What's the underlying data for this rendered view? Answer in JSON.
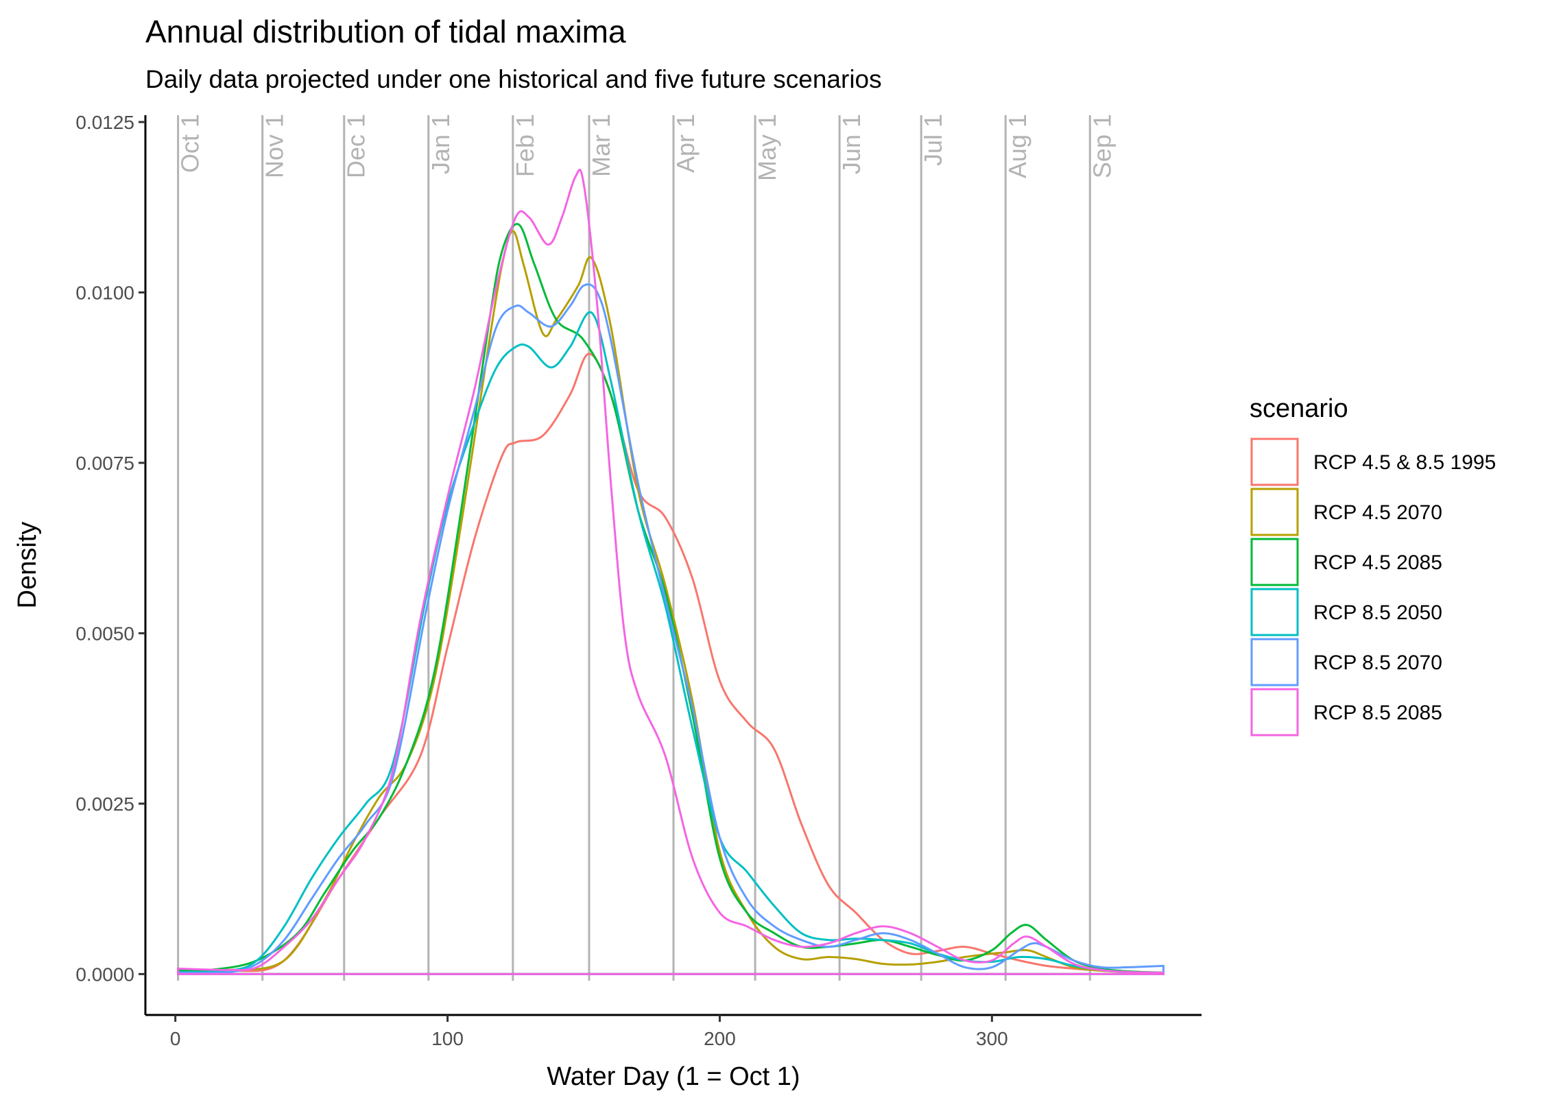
{
  "chart_data": {
    "type": "line",
    "title": "Annual distribution of tidal maxima",
    "subtitle": "Daily data projected under one historical and five future scenarios",
    "xlabel": "Water Day (1 = Oct 1)",
    "ylabel": "Density",
    "xlim": [
      -11,
      377
    ],
    "ylim": [
      -0.0006,
      0.0126
    ],
    "x_ticks": [
      0,
      100,
      200,
      300
    ],
    "x_tick_labels": [
      "0",
      "100",
      "200",
      "300"
    ],
    "y_ticks": [
      0,
      0.0025,
      0.005,
      0.0075,
      0.01,
      0.0125
    ],
    "y_tick_labels": [
      "0.0000",
      "0.0025",
      "0.0050",
      "0.0075",
      "0.0100",
      "0.0125"
    ],
    "grid": false,
    "legend": {
      "title": "scenario",
      "position": "right"
    },
    "month_lines": [
      {
        "label": "Oct 1",
        "x": 1
      },
      {
        "label": "Nov 1",
        "x": 32
      },
      {
        "label": "Dec 1",
        "x": 62
      },
      {
        "label": "Jan 1",
        "x": 93
      },
      {
        "label": "Feb 1",
        "x": 124
      },
      {
        "label": "Mar 1",
        "x": 152
      },
      {
        "label": "Apr 1",
        "x": 183
      },
      {
        "label": "May 1",
        "x": 213
      },
      {
        "label": "Jun 1",
        "x": 244
      },
      {
        "label": "Jul 1",
        "x": 274
      },
      {
        "label": "Aug 1",
        "x": 305
      },
      {
        "label": "Sep 1",
        "x": 336
      }
    ],
    "series": [
      {
        "name": "RCP 4.5 & 8.5 1995",
        "color": "#F8766D",
        "x": [
          1,
          20,
          40,
          60,
          75,
          90,
          100,
          110,
          120,
          125,
          135,
          145,
          152,
          160,
          170,
          180,
          190,
          200,
          210,
          220,
          230,
          240,
          250,
          260,
          270,
          280,
          290,
          300,
          310,
          320,
          330,
          340,
          350,
          363
        ],
        "y": [
          2e-05,
          4e-05,
          0.0002,
          0.0014,
          0.0023,
          0.0032,
          0.0048,
          0.0064,
          0.0076,
          0.0078,
          0.0079,
          0.0085,
          0.0091,
          0.0085,
          0.0071,
          0.0067,
          0.0058,
          0.0043,
          0.0037,
          0.0033,
          0.0022,
          0.0013,
          0.0009,
          0.0005,
          0.0003,
          0.00034,
          0.0004,
          0.0003,
          0.0002,
          0.00012,
          8e-05,
          5e-05,
          3e-05,
          1e-05
        ]
      },
      {
        "name": "RCP 4.5 2070",
        "color": "#B79F00",
        "x": [
          1,
          20,
          40,
          55,
          65,
          75,
          85,
          95,
          105,
          115,
          120,
          124,
          128,
          135,
          140,
          148,
          153,
          160,
          170,
          180,
          190,
          200,
          210,
          220,
          230,
          240,
          250,
          260,
          270,
          280,
          290,
          300,
          305,
          313,
          320,
          330,
          340,
          350,
          363
        ],
        "y": [
          5e-05,
          6e-05,
          0.0002,
          0.0011,
          0.0019,
          0.0026,
          0.0031,
          0.0043,
          0.0066,
          0.0092,
          0.0104,
          0.0109,
          0.0104,
          0.0094,
          0.0096,
          0.0101,
          0.0105,
          0.0095,
          0.0071,
          0.0057,
          0.004,
          0.0018,
          0.0009,
          0.0004,
          0.00022,
          0.00025,
          0.00022,
          0.00015,
          0.00014,
          0.00018,
          0.00025,
          0.0003,
          0.00032,
          0.00035,
          0.00025,
          0.0001,
          5e-05,
          3e-05,
          2e-05
        ]
      },
      {
        "name": "RCP 4.5 2085",
        "color": "#00BA38",
        "x": [
          1,
          15,
          30,
          45,
          55,
          65,
          75,
          85,
          95,
          105,
          115,
          120,
          126,
          132,
          140,
          150,
          160,
          170,
          180,
          190,
          200,
          210,
          220,
          230,
          240,
          250,
          260,
          270,
          280,
          290,
          300,
          307,
          313,
          320,
          330,
          340,
          350,
          363
        ],
        "y": [
          5e-05,
          7e-05,
          0.0002,
          0.0006,
          0.0012,
          0.0018,
          0.0023,
          0.0031,
          0.0044,
          0.0068,
          0.0095,
          0.0106,
          0.011,
          0.0104,
          0.0096,
          0.0093,
          0.0085,
          0.0068,
          0.0056,
          0.0038,
          0.0017,
          0.0009,
          0.0006,
          0.0004,
          0.0004,
          0.00045,
          0.0005,
          0.0004,
          0.00028,
          0.0002,
          0.00035,
          0.0006,
          0.00072,
          0.0005,
          0.0002,
          8e-05,
          4e-05,
          2e-05
        ]
      },
      {
        "name": "RCP 8.5 2050",
        "color": "#00BFC4",
        "x": [
          1,
          20,
          30,
          40,
          50,
          60,
          70,
          80,
          92,
          100,
          110,
          118,
          125,
          130,
          138,
          145,
          153,
          160,
          170,
          180,
          190,
          200,
          210,
          220,
          230,
          240,
          250,
          260,
          270,
          280,
          290,
          300,
          310,
          320,
          330,
          340,
          350,
          363
        ],
        "y": [
          3e-05,
          5e-05,
          0.0002,
          0.0007,
          0.0014,
          0.002,
          0.0025,
          0.0031,
          0.0055,
          0.0069,
          0.0081,
          0.0089,
          0.0092,
          0.0092,
          0.0089,
          0.0092,
          0.0097,
          0.0087,
          0.0068,
          0.0054,
          0.0036,
          0.002,
          0.0015,
          0.001,
          0.0006,
          0.0005,
          0.00052,
          0.0005,
          0.00045,
          0.0003,
          0.0002,
          0.00018,
          0.00025,
          0.00022,
          0.00012,
          6e-05,
          3e-05,
          1e-05
        ]
      },
      {
        "name": "RCP 8.5 2070",
        "color": "#619CFF",
        "x": [
          1,
          20,
          30,
          40,
          50,
          60,
          70,
          80,
          92,
          100,
          110,
          118,
          125,
          130,
          138,
          145,
          150,
          155,
          160,
          170,
          180,
          190,
          200,
          210,
          220,
          230,
          240,
          250,
          260,
          270,
          280,
          290,
          300,
          310,
          315,
          320,
          330,
          340,
          350,
          363
        ],
        "y": [
          2e-05,
          3e-05,
          0.00015,
          0.0005,
          0.0011,
          0.0017,
          0.0022,
          0.0029,
          0.0053,
          0.0068,
          0.0083,
          0.0095,
          0.0098,
          0.0097,
          0.0095,
          0.0098,
          0.0101,
          0.01,
          0.0093,
          0.0072,
          0.0055,
          0.0039,
          0.002,
          0.0011,
          0.0007,
          0.0005,
          0.0004,
          0.0005,
          0.0006,
          0.0005,
          0.0003,
          0.0001,
          0.0001,
          0.00035,
          0.00045,
          0.0004,
          0.0002,
          0.0001,
          0.0001,
          0.00012
        ]
      },
      {
        "name": "RCP 8.5 2085",
        "color": "#F564E3",
        "x": [
          1,
          20,
          30,
          40,
          50,
          60,
          70,
          80,
          90,
          100,
          110,
          118,
          125,
          130,
          137,
          142,
          147,
          150,
          155,
          160,
          165,
          170,
          180,
          190,
          200,
          210,
          220,
          230,
          240,
          250,
          260,
          270,
          280,
          290,
          300,
          308,
          313,
          320,
          330,
          340,
          350,
          363
        ],
        "y": [
          8e-05,
          6e-05,
          0.0001,
          0.0004,
          0.0008,
          0.0014,
          0.002,
          0.003,
          0.0052,
          0.007,
          0.0086,
          0.0101,
          0.0111,
          0.0111,
          0.0107,
          0.0111,
          0.0117,
          0.0116,
          0.0098,
          0.0072,
          0.005,
          0.0041,
          0.0032,
          0.0017,
          0.0009,
          0.0007,
          0.0005,
          0.0004,
          0.00045,
          0.0006,
          0.0007,
          0.0006,
          0.0004,
          0.0002,
          0.0002,
          0.00045,
          0.00055,
          0.0004,
          0.00015,
          6e-05,
          3e-05,
          2e-05
        ]
      }
    ]
  }
}
